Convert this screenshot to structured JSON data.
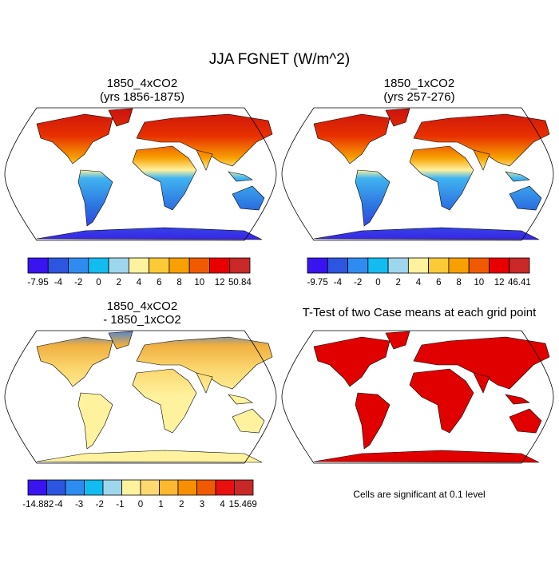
{
  "title": "JJA FGNET (W/m^2)",
  "panels": [
    {
      "title": [
        "1850_4xCO2",
        "(yrs 1856-1875)"
      ],
      "colorbar": {
        "labels": [
          "-7.95",
          "-4",
          "-2",
          "0",
          "2",
          "4",
          "6",
          "8",
          "10",
          "12",
          "50.84"
        ],
        "colors": [
          "#3a14f0",
          "#2c56e0",
          "#2e8cf0",
          "#12bcf0",
          "#9ed6ee",
          "#fff29e",
          "#fcca36",
          "#f7a000",
          "#f05a00",
          "#e80000",
          "#c82828"
        ]
      }
    },
    {
      "title": [
        "1850_1xCO2",
        "(yrs 257-276)"
      ],
      "colorbar": {
        "labels": [
          "-9.75",
          "-4",
          "-2",
          "0",
          "2",
          "4",
          "6",
          "8",
          "10",
          "12",
          "46.41"
        ],
        "colors": [
          "#3a14f0",
          "#2c56e0",
          "#2e8cf0",
          "#12bcf0",
          "#9ed6ee",
          "#fff29e",
          "#fcca36",
          "#f7a000",
          "#f05a00",
          "#e80000",
          "#c82828"
        ]
      }
    },
    {
      "title": [
        "1850_4xCO2",
        "- 1850_1xCO2"
      ],
      "colorbar": {
        "labels": [
          "-14.882",
          "-4",
          "-3",
          "-2",
          "-1",
          "0",
          "1",
          "2",
          "3",
          "4",
          "15.469"
        ],
        "colors": [
          "#3a14f0",
          "#2c56e0",
          "#2e8cf0",
          "#12bcf0",
          "#9ed6ee",
          "#fff29e",
          "#fdda70",
          "#fcb830",
          "#f79000",
          "#f05a00",
          "#e81010",
          "#c82828"
        ]
      }
    },
    {
      "title": [
        "T-Test of two Case means at each grid point"
      ],
      "note": "Cells are significant at 0.1 level"
    }
  ]
}
